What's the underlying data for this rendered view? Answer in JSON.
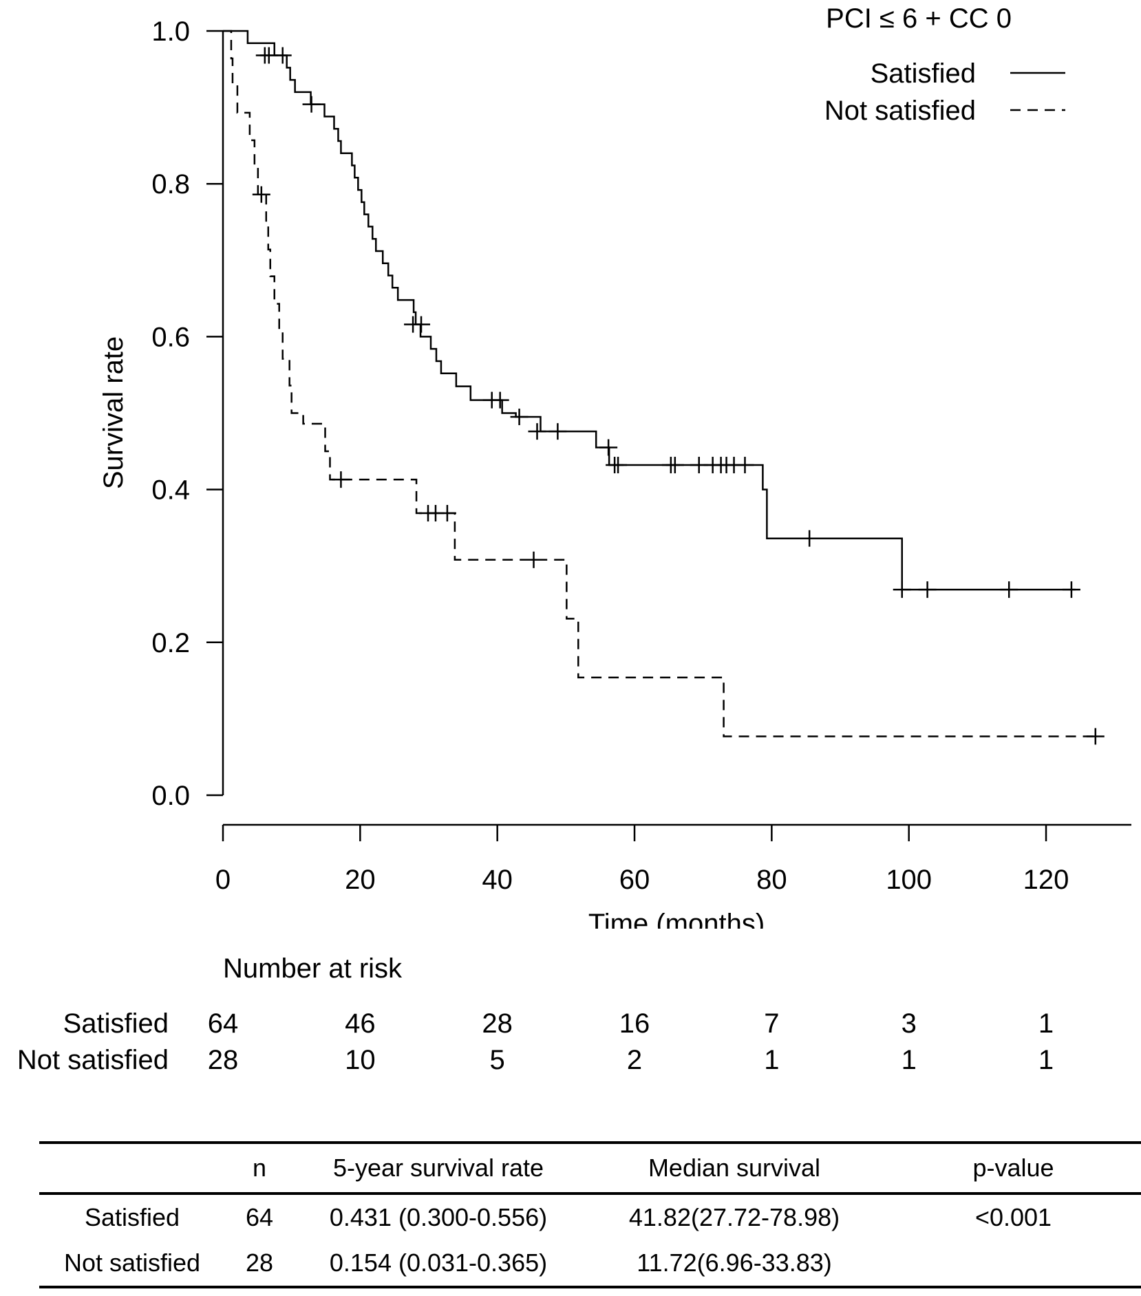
{
  "chart_data": {
    "type": "line",
    "subtype": "kaplan-meier survival curve",
    "title": "PCI ≤ 6 + CC 0",
    "xlabel": "Time (months)",
    "ylabel": "Survival rate",
    "xlim": [
      0,
      130
    ],
    "ylim": [
      0,
      1
    ],
    "x_ticks": [
      0,
      20,
      40,
      60,
      80,
      100,
      120
    ],
    "x_tick_labels": [
      "0",
      "20",
      "40",
      "60",
      "80",
      "100",
      "120"
    ],
    "y_ticks": [
      0,
      0.2,
      0.4,
      0.6,
      0.8,
      1.0
    ],
    "y_tick_labels": [
      "0.0",
      "0.2",
      "0.4",
      "0.6",
      "0.8",
      "1.0"
    ],
    "grid": false,
    "legend_position": "top-right",
    "series": [
      {
        "name": "Satisfied",
        "line_style": "solid",
        "steps": [
          [
            0,
            1.0
          ],
          [
            3.6,
            0.984
          ],
          [
            7.5,
            0.968
          ],
          [
            9.3,
            0.952
          ],
          [
            9.8,
            0.936
          ],
          [
            10.5,
            0.92
          ],
          [
            12.8,
            0.904
          ],
          [
            14.8,
            0.888
          ],
          [
            16.2,
            0.872
          ],
          [
            16.8,
            0.856
          ],
          [
            17.2,
            0.84
          ],
          [
            18.8,
            0.824
          ],
          [
            19.2,
            0.808
          ],
          [
            19.7,
            0.792
          ],
          [
            20.2,
            0.776
          ],
          [
            20.6,
            0.76
          ],
          [
            21.2,
            0.744
          ],
          [
            21.8,
            0.728
          ],
          [
            22.3,
            0.712
          ],
          [
            23.3,
            0.696
          ],
          [
            24.1,
            0.68
          ],
          [
            24.7,
            0.664
          ],
          [
            25.5,
            0.648
          ],
          [
            27.8,
            0.632
          ],
          [
            28.1,
            0.616
          ],
          [
            28.8,
            0.6
          ],
          [
            30.3,
            0.584
          ],
          [
            31.1,
            0.568
          ],
          [
            31.8,
            0.552
          ],
          [
            34.0,
            0.535
          ],
          [
            36.1,
            0.517
          ],
          [
            40.7,
            0.5
          ],
          [
            42.7,
            0.495
          ],
          [
            46.3,
            0.476
          ],
          [
            54.4,
            0.455
          ],
          [
            56.3,
            0.432
          ],
          [
            78.7,
            0.4
          ],
          [
            79.3,
            0.336
          ],
          [
            99.0,
            0.269
          ],
          [
            124.3,
            0.269
          ]
        ],
        "censored": [
          [
            6.1,
            0.968
          ],
          [
            6.7,
            0.968
          ],
          [
            8.7,
            0.968
          ],
          [
            12.9,
            0.904
          ],
          [
            27.7,
            0.616
          ],
          [
            28.9,
            0.616
          ],
          [
            39.2,
            0.517
          ],
          [
            40.4,
            0.517
          ],
          [
            43.2,
            0.495
          ],
          [
            45.8,
            0.476
          ],
          [
            48.8,
            0.476
          ],
          [
            56.2,
            0.455
          ],
          [
            57.1,
            0.432
          ],
          [
            57.6,
            0.432
          ],
          [
            65.3,
            0.432
          ],
          [
            65.9,
            0.432
          ],
          [
            69.4,
            0.432
          ],
          [
            71.4,
            0.432
          ],
          [
            72.6,
            0.432
          ],
          [
            73.4,
            0.432
          ],
          [
            74.5,
            0.432
          ],
          [
            76.1,
            0.432
          ],
          [
            85.5,
            0.336
          ],
          [
            99.0,
            0.269
          ],
          [
            102.7,
            0.269
          ],
          [
            114.6,
            0.269
          ],
          [
            123.7,
            0.269
          ]
        ]
      },
      {
        "name": "Not satisfied",
        "line_style": "dashed",
        "steps": [
          [
            0,
            1.0
          ],
          [
            1.2,
            0.964
          ],
          [
            1.4,
            0.929
          ],
          [
            2.1,
            0.893
          ],
          [
            3.9,
            0.857
          ],
          [
            4.6,
            0.821
          ],
          [
            5.1,
            0.786
          ],
          [
            6.3,
            0.75
          ],
          [
            6.6,
            0.714
          ],
          [
            6.9,
            0.679
          ],
          [
            7.5,
            0.643
          ],
          [
            8.2,
            0.607
          ],
          [
            8.7,
            0.571
          ],
          [
            9.7,
            0.536
          ],
          [
            10.0,
            0.5
          ],
          [
            11.7,
            0.486
          ],
          [
            14.9,
            0.45
          ],
          [
            15.6,
            0.413
          ],
          [
            28.2,
            0.369
          ],
          [
            33.8,
            0.308
          ],
          [
            50.1,
            0.231
          ],
          [
            51.8,
            0.154
          ],
          [
            73.0,
            0.077
          ],
          [
            127.5,
            0.077
          ]
        ],
        "censored": [
          [
            5.6,
            0.786
          ],
          [
            17.2,
            0.413
          ],
          [
            29.9,
            0.369
          ],
          [
            31.0,
            0.369
          ],
          [
            32.7,
            0.369
          ],
          [
            45.3,
            0.308
          ],
          [
            127.2,
            0.077
          ]
        ]
      }
    ]
  },
  "number_at_risk": {
    "title": "Number at risk",
    "times": [
      0,
      20,
      40,
      60,
      80,
      100,
      120
    ],
    "rows": [
      {
        "label": "Satisfied",
        "values": [
          "64",
          "46",
          "28",
          "16",
          "7",
          "3",
          "1"
        ]
      },
      {
        "label": "Not satisfied",
        "values": [
          "28",
          "10",
          "5",
          "2",
          "1",
          "1",
          "1"
        ]
      }
    ]
  },
  "summary_table": {
    "headers": [
      "",
      "n",
      "5-year survival rate",
      "Median survival",
      "p-value"
    ],
    "rows": [
      [
        "Satisfied",
        "64",
        "0.431 (0.300-0.556)",
        "41.82(27.72-78.98)",
        "<0.001"
      ],
      [
        "Not satisfied",
        "28",
        "0.154 (0.031-0.365)",
        "11.72(6.96-33.83)",
        ""
      ]
    ]
  }
}
